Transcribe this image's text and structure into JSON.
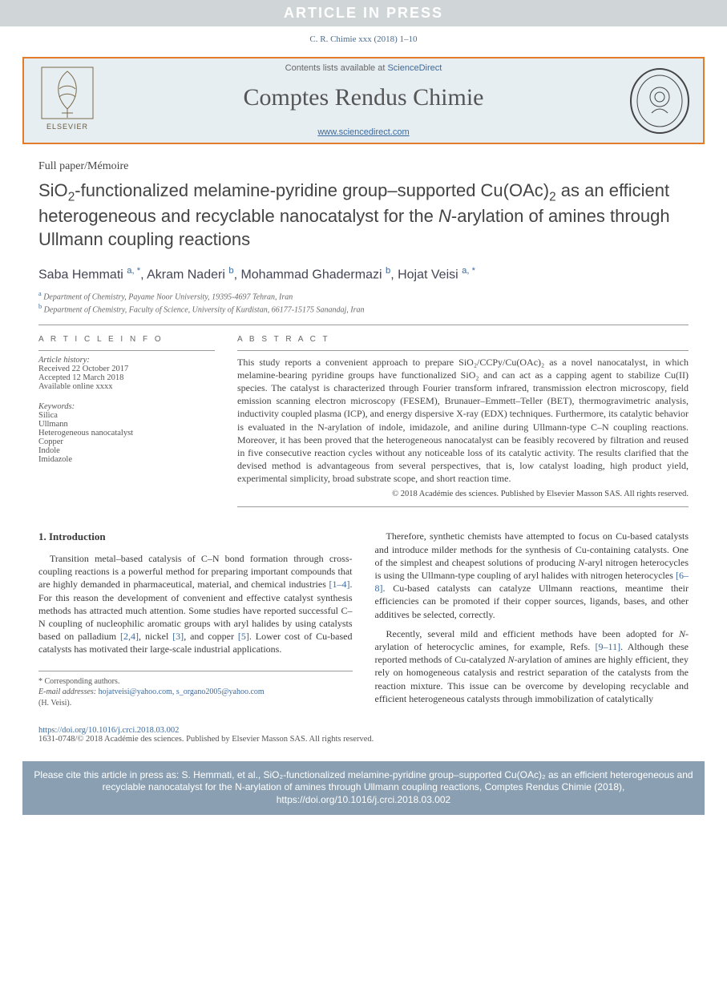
{
  "banner_text": "ARTICLE IN PRESS",
  "cite_line": "C. R. Chimie xxx (2018) 1–10",
  "header": {
    "contents_prefix": "Contents lists available at ",
    "contents_link": "ScienceDirect",
    "journal_title": "Comptes Rendus Chimie",
    "journal_url": "www.sciencedirect.com",
    "publisher_label": "ELSEVIER"
  },
  "paper_type": "Full paper/Mémoire",
  "title_parts": {
    "p1": "SiO",
    "sub1": "2",
    "p2": "-functionalized melamine-pyridine group–supported Cu(OAc)",
    "sub2": "2",
    "p3": " as an efficient heterogeneous and recyclable nanocatalyst for the ",
    "ital": "N",
    "p4": "-arylation of amines through Ullmann coupling reactions"
  },
  "authors_html": "Saba Hemmati <sup>a, *</sup>, Akram Naderi <sup>b</sup>, Mohammad Ghadermazi <sup>b</sup>, Hojat Veisi <sup>a, *</sup>",
  "affiliations": [
    {
      "sup": "a",
      "text": "Department of Chemistry, Payame Noor University, 19395-4697 Tehran, Iran"
    },
    {
      "sup": "b",
      "text": "Department of Chemistry, Faculty of Science, University of Kurdistan, 66177-15175 Sanandaj, Iran"
    }
  ],
  "article_info": {
    "heading": "A R T I C L E  I N F O",
    "history_head": "Article history:",
    "received": "Received 22 October 2017",
    "accepted": "Accepted 12 March 2018",
    "online": "Available online xxxx",
    "kw_head": "Keywords:",
    "keywords": [
      "Silica",
      "Ullmann",
      "Heterogeneous nanocatalyst",
      "Copper",
      "Indole",
      "Imidazole"
    ]
  },
  "abstract": {
    "heading": "A B S T R A C T",
    "text": "This study reports a convenient approach to prepare SiO₂/CCPy/Cu(OAc)₂ as a novel nanocatalyst, in which melamine-bearing pyridine groups have functionalized SiO₂ and can act as a capping agent to stabilize Cu(II) species. The catalyst is characterized through Fourier transform infrared, transmission electron microscopy, field emission scanning electron microscopy (FESEM), Brunauer–Emmett–Teller (BET), thermogravimetric analysis, inductivity coupled plasma (ICP), and energy dispersive X-ray (EDX) techniques. Furthermore, its catalytic behavior is evaluated in the N-arylation of indole, imidazole, and aniline during Ullmann-type C–N coupling reactions. Moreover, it has been proved that the heterogeneous nanocatalyst can be feasibly recovered by filtration and reused in five consecutive reaction cycles without any noticeable loss of its catalytic activity. The results clarified that the devised method is advantageous from several perspectives, that is, low catalyst loading, high product yield, experimental simplicity, broad substrate scope, and short reaction time.",
    "copyright": "© 2018 Académie des sciences. Published by Elsevier Masson SAS. All rights reserved."
  },
  "intro_head": "1. Introduction",
  "col1_paras": [
    "Transition metal–based catalysis of C–N bond formation through cross-coupling reactions is a powerful method for preparing important compounds that are highly demanded in pharmaceutical, material, and chemical industries [1–4]. For this reason the development of convenient and effective catalyst synthesis methods has attracted much attention. Some studies have reported successful C–N coupling of nucleophilic aromatic groups with aryl halides by using catalysts based on palladium [2,4], nickel [3], and copper [5]. Lower cost of Cu-based catalysts has motivated their large-scale industrial applications."
  ],
  "col2_paras": [
    "Therefore, synthetic chemists have attempted to focus on Cu-based catalysts and introduce milder methods for the synthesis of Cu-containing catalysts. One of the simplest and cheapest solutions of producing N-aryl nitrogen heterocycles is using the Ullmann-type coupling of aryl halides with nitrogen heterocycles [6–8]. Cu-based catalysts can catalyze Ullmann reactions, meantime their efficiencies can be promoted if their copper sources, ligands, bases, and other additives be selected, correctly.",
    "Recently, several mild and efficient methods have been adopted for N-arylation of heterocyclic amines, for example, Refs. [9–11]. Although these reported methods of Cu-catalyzed N-arylation of amines are highly efficient, they rely on homogeneous catalysis and restrict separation of the catalysts from the reaction mixture. This issue can be overcome by developing recyclable and efficient heterogeneous catalysts through immobilization of catalytically"
  ],
  "footnotes": {
    "corr": "* Corresponding authors.",
    "email_label": "E-mail addresses: ",
    "emails": "hojatveisi@yahoo.com, s_organo2005@yahoo.com",
    "who": "(H. Veisi)."
  },
  "doi": {
    "url": "https://doi.org/10.1016/j.crci.2018.03.002",
    "line": "1631-0748/© 2018 Académie des sciences. Published by Elsevier Masson SAS. All rights reserved."
  },
  "cite_box": "Please cite this article in press as: S. Hemmati, et al., SiO₂-functionalized melamine-pyridine group–supported Cu(OAc)₂ as an efficient heterogeneous and recyclable nanocatalyst for the N-arylation of amines through Ullmann coupling reactions, Comptes Rendus Chimie (2018), https://doi.org/10.1016/j.crci.2018.03.002",
  "colors": {
    "banner_bg": "#d0d6d8",
    "banner_fg": "#ffffff",
    "border": "#e27b2a",
    "header_bg": "#e6eef2",
    "link": "#3b6aa0",
    "text": "#444444",
    "citebox_bg": "#8aa0b2"
  }
}
